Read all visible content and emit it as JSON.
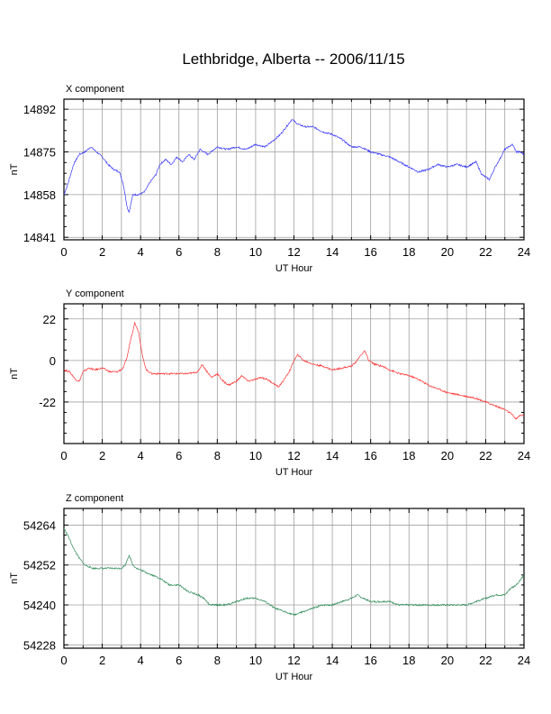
{
  "title": "Lethbridge, Alberta -- 2006/11/15",
  "xlabel": "UT Hour",
  "ylabel": "nT",
  "x_ticks": [
    0,
    2,
    4,
    6,
    8,
    10,
    12,
    14,
    16,
    18,
    20,
    22,
    24
  ],
  "chart_data": [
    {
      "type": "line",
      "title": "X component",
      "xlabel": "UT Hour",
      "ylabel": "nT",
      "xlim": [
        0,
        24
      ],
      "ylim": [
        14840,
        14896
      ],
      "yticks": [
        14841,
        14858,
        14875,
        14892
      ],
      "grid": true,
      "color": "#3333ff",
      "series": [
        {
          "x": [
            0,
            0.2,
            0.5,
            0.8,
            1.1,
            1.4,
            1.7,
            2.0,
            2.3,
            2.6,
            2.9,
            3.1,
            3.3,
            3.4,
            3.6,
            3.9,
            4.2,
            4.5,
            4.8,
            5.0,
            5.3,
            5.6,
            5.9,
            6.2,
            6.5,
            6.8,
            7.1,
            7.5,
            8.0,
            8.5,
            9.0,
            9.5,
            10.0,
            10.5,
            11.0,
            11.3,
            11.6,
            11.9,
            12.2,
            12.6,
            13.0,
            13.5,
            14.0,
            14.5,
            15.0,
            15.5,
            16.0,
            16.5,
            17.0,
            17.5,
            18.0,
            18.5,
            19.0,
            19.5,
            20.0,
            20.5,
            21.0,
            21.5,
            21.8,
            22.0,
            22.2,
            22.5,
            22.8,
            23.0,
            23.2,
            23.4,
            23.6,
            23.8,
            24.0
          ],
          "values": [
            14858,
            14862,
            14870,
            14874,
            14875,
            14877,
            14875,
            14873,
            14870,
            14868,
            14867,
            14862,
            14853,
            14851,
            14858,
            14858,
            14859,
            14863,
            14866,
            14870,
            14872,
            14870,
            14873,
            14871,
            14874,
            14872,
            14876,
            14874,
            14877,
            14876,
            14877,
            14876,
            14878,
            14877,
            14880,
            14882,
            14885,
            14888,
            14886,
            14885,
            14885,
            14883,
            14882,
            14880,
            14877,
            14877,
            14875,
            14874,
            14873,
            14871,
            14869,
            14867,
            14868,
            14870,
            14869,
            14870,
            14869,
            14871,
            14866,
            14865,
            14864,
            14869,
            14873,
            14876,
            14877,
            14878,
            14875,
            14875,
            14874
          ]
        }
      ]
    },
    {
      "type": "line",
      "title": "Y component",
      "xlabel": "UT Hour",
      "ylabel": "nT",
      "xlim": [
        0,
        24
      ],
      "ylim": [
        -44,
        30
      ],
      "yticks": [
        -22,
        0,
        22
      ],
      "grid": true,
      "color": "#ff3333",
      "series": [
        {
          "x": [
            0,
            0.3,
            0.6,
            0.8,
            1.0,
            1.3,
            1.6,
            2.0,
            2.4,
            2.8,
            3.1,
            3.3,
            3.5,
            3.7,
            3.9,
            4.1,
            4.3,
            4.6,
            5.0,
            5.5,
            6.0,
            6.5,
            7.0,
            7.2,
            7.4,
            7.7,
            8.0,
            8.3,
            8.6,
            9.0,
            9.3,
            9.6,
            10.0,
            10.3,
            10.6,
            10.9,
            11.2,
            11.5,
            11.8,
            12.0,
            12.2,
            12.5,
            13.0,
            13.5,
            14.0,
            14.5,
            15.0,
            15.3,
            15.5,
            15.7,
            15.9,
            16.2,
            16.6,
            17.0,
            17.5,
            18.0,
            18.5,
            19.0,
            19.5,
            20.0,
            20.5,
            21.0,
            21.5,
            22.0,
            22.5,
            23.0,
            23.3,
            23.6,
            23.8,
            24.0
          ],
          "values": [
            -5,
            -6,
            -10,
            -11,
            -6,
            -4,
            -5,
            -4,
            -6,
            -6,
            -4,
            2,
            12,
            20,
            15,
            2,
            -5,
            -7,
            -7,
            -7,
            -7,
            -7,
            -6,
            -2,
            -5,
            -9,
            -7,
            -11,
            -13,
            -11,
            -8,
            -11,
            -10,
            -9,
            -10,
            -12,
            -14,
            -10,
            -5,
            0,
            3,
            0,
            -2,
            -3,
            -5,
            -4,
            -3,
            0,
            3,
            5,
            0,
            -2,
            -3,
            -5,
            -7,
            -8,
            -10,
            -13,
            -15,
            -17,
            -18,
            -19,
            -20,
            -22,
            -24,
            -26,
            -28,
            -31,
            -29,
            -29
          ]
        }
      ]
    },
    {
      "type": "line",
      "title": "Z component",
      "xlabel": "UT Hour",
      "ylabel": "nT",
      "xlim": [
        0,
        24
      ],
      "ylim": [
        54227,
        54269
      ],
      "yticks": [
        54228,
        54240,
        54252,
        54264
      ],
      "grid": true,
      "color": "#2e8b57",
      "series": [
        {
          "x": [
            0,
            0.2,
            0.5,
            0.8,
            1.1,
            1.5,
            2.0,
            2.5,
            3.0,
            3.2,
            3.4,
            3.6,
            3.8,
            4.2,
            4.6,
            5.0,
            5.5,
            6.0,
            6.5,
            7.0,
            7.3,
            7.6,
            8.0,
            8.5,
            9.0,
            9.5,
            10.0,
            10.5,
            11.0,
            11.5,
            12.0,
            12.5,
            13.0,
            13.5,
            14.0,
            14.5,
            15.0,
            15.3,
            15.6,
            16.0,
            16.5,
            17.0,
            17.5,
            18.0,
            18.5,
            19.0,
            19.5,
            20.0,
            20.5,
            21.0,
            21.5,
            22.0,
            22.5,
            23.0,
            23.3,
            23.6,
            24.0
          ],
          "values": [
            54263,
            54261,
            54257,
            54254,
            54252,
            54251,
            54251,
            54251,
            54251,
            54252,
            54255,
            54252,
            54251,
            54250,
            54249,
            54248,
            54246,
            54246,
            54244,
            54243,
            54242,
            54240,
            54240,
            54240,
            54241,
            54242,
            54242,
            54241,
            54239,
            54238,
            54237,
            54238,
            54239,
            54240,
            54240,
            54241,
            54242,
            54243,
            54242,
            54241,
            54241,
            54241,
            54240,
            54240,
            54240,
            54240,
            54240,
            54240,
            54240,
            54240,
            54241,
            54242,
            54243,
            54243,
            54245,
            54246,
            54249
          ]
        }
      ]
    }
  ]
}
